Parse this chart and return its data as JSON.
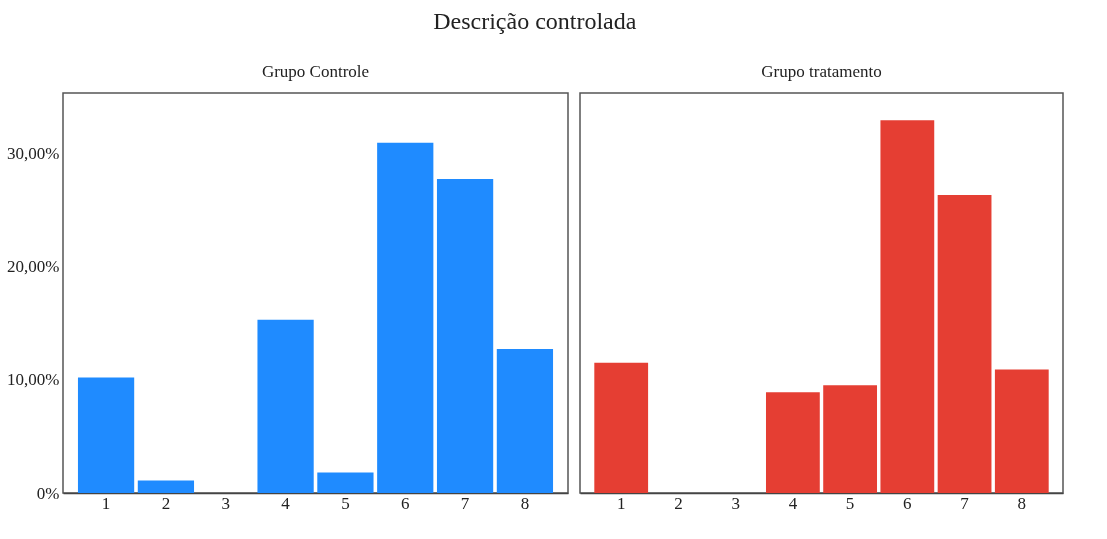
{
  "chart_data": [
    {
      "type": "bar",
      "title": "Grupo Controle",
      "annotations": [
        "Descrição controlada"
      ],
      "categories": [
        "1",
        "2",
        "3",
        "4",
        "5",
        "6",
        "7",
        "8"
      ],
      "values": [
        10.2,
        1.1,
        0,
        15.3,
        1.8,
        30.9,
        27.7,
        12.7
      ],
      "color": "#1f8bff",
      "ylim": [
        0,
        35.3
      ],
      "yticks": [
        {
          "value": 0,
          "label": "0%"
        },
        {
          "value": 10,
          "label": "10,00%"
        },
        {
          "value": 20,
          "label": "20,00%"
        },
        {
          "value": 30,
          "label": "30,00%"
        }
      ],
      "grid": false
    },
    {
      "type": "bar",
      "title": "Grupo tratamento",
      "categories": [
        "1",
        "2",
        "3",
        "4",
        "5",
        "6",
        "7",
        "8"
      ],
      "values": [
        11.5,
        0,
        0,
        8.9,
        9.5,
        32.9,
        26.3,
        10.9
      ],
      "color": "#e53e33",
      "ylim": [
        0,
        35.3
      ],
      "tick_labels": "x",
      "grid": false
    }
  ]
}
